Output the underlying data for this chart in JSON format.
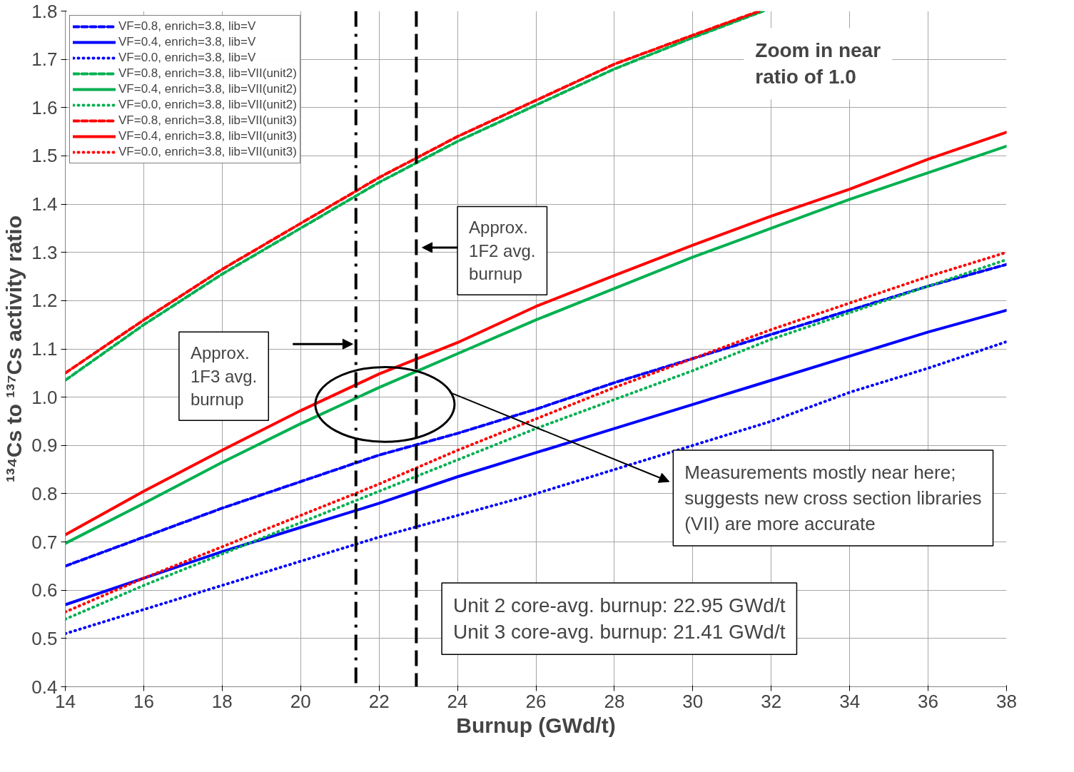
{
  "chart_data": {
    "type": "line",
    "xlabel": "Burnup (GWd/t)",
    "ylabel": "¹³⁴Cs to ¹³⁷Cs activity ratio",
    "x": [
      14,
      16,
      18,
      20,
      22,
      24,
      26,
      28,
      30,
      32,
      34,
      36,
      38
    ],
    "xlim": [
      14,
      38
    ],
    "xticks": [
      14,
      16,
      18,
      20,
      22,
      24,
      26,
      28,
      30,
      32,
      34,
      36,
      38
    ],
    "ylim": [
      0.4,
      1.8
    ],
    "yticks": [
      0.4,
      0.5,
      0.6,
      0.7,
      0.8,
      0.9,
      {
        "value": 1.0,
        "label": "1.0"
      },
      1.1,
      1.2,
      1.3,
      1.4,
      1.5,
      1.6,
      1.7,
      1.8
    ],
    "grid": true,
    "legend": "top left",
    "marker": "none",
    "series": [
      {
        "name": "VF=0.8, enrich=3.8, lib=V",
        "color": "#0000ff",
        "line_style": "dashed",
        "values": [
          0.65,
          0.71,
          0.77,
          0.825,
          0.88,
          0.925,
          0.975,
          1.03,
          1.08,
          1.13,
          1.18,
          1.23,
          1.275
        ]
      },
      {
        "name": "VF=0.4, enrich=3.8, lib=V",
        "color": "#0000ff",
        "line_style": "solid",
        "values": [
          0.57,
          0.625,
          0.68,
          0.73,
          0.78,
          0.835,
          0.885,
          0.935,
          0.985,
          1.035,
          1.085,
          1.135,
          1.18
        ]
      },
      {
        "name": "VF=0.0, enrich=3.8, lib=V",
        "color": "#0000ff",
        "line_style": "dotted",
        "values": [
          0.51,
          0.56,
          0.61,
          0.66,
          0.71,
          0.755,
          0.8,
          0.85,
          0.9,
          0.95,
          1.01,
          1.06,
          1.115
        ]
      },
      {
        "name": "VF=0.8, enrich=3.8, lib=VII(unit2)",
        "color": "#00b050",
        "line_style": "dashed",
        "x": [
          14,
          16,
          18,
          20,
          22,
          24,
          26,
          28,
          30,
          31.8
        ],
        "values": [
          1.035,
          1.15,
          1.255,
          1.35,
          1.445,
          1.53,
          1.605,
          1.68,
          1.745,
          1.8
        ]
      },
      {
        "name": "VF=0.4, enrich=3.8, lib=VII(unit2)",
        "color": "#00b050",
        "line_style": "solid",
        "values": [
          0.697,
          0.78,
          0.865,
          0.945,
          1.02,
          1.09,
          1.16,
          1.225,
          1.29,
          1.35,
          1.41,
          1.465,
          1.52
        ]
      },
      {
        "name": "VF=0.0, enrich=3.8, lib=VII(unit2)",
        "color": "#00b050",
        "line_style": "dotted",
        "values": [
          0.54,
          0.61,
          0.675,
          0.74,
          0.805,
          0.87,
          0.935,
          0.995,
          1.055,
          1.12,
          1.175,
          1.23,
          1.285
        ]
      },
      {
        "name": "VF=0.8, enrich=3.8, lib=VII(unit3)",
        "color": "#ff0000",
        "line_style": "dashed",
        "x": [
          14,
          16,
          18,
          20,
          22,
          24,
          26,
          28,
          30,
          31.7
        ],
        "values": [
          1.05,
          1.16,
          1.265,
          1.36,
          1.455,
          1.54,
          1.615,
          1.69,
          1.75,
          1.8
        ]
      },
      {
        "name": "VF=0.4, enrich=3.8, lib=VII(unit3)",
        "color": "#ff0000",
        "line_style": "solid",
        "values": [
          0.715,
          0.805,
          0.89,
          0.972,
          1.048,
          1.113,
          1.188,
          1.252,
          1.315,
          1.375,
          1.431,
          1.493,
          1.549
        ]
      },
      {
        "name": "VF=0.0, enrich=3.8, lib=VII(unit3)",
        "color": "#ff0000",
        "line_style": "dotted",
        "values": [
          0.555,
          0.625,
          0.69,
          0.755,
          0.82,
          0.89,
          0.955,
          1.02,
          1.08,
          1.14,
          1.195,
          1.25,
          1.3
        ]
      }
    ],
    "ref_lines": [
      {
        "axis": "x",
        "value": 21.41,
        "color": "#000000",
        "line_style": "dashdot"
      },
      {
        "axis": "x",
        "value": 22.95,
        "color": "#000000",
        "line_style": "dashed"
      }
    ],
    "annotations": [
      "Zoom in near\nratio of 1.0",
      "Approx.\n1F2 avg.\nburnup",
      "Approx.\n1F3 avg.\nburnup",
      "Measurements mostly near here;\nsuggests new cross section libraries\n(VII) are more accurate",
      "Unit 2 core-avg. burnup: 22.95 GWd/t\nUnit 3 core-avg. burnup: 21.41 GWd/t"
    ]
  }
}
